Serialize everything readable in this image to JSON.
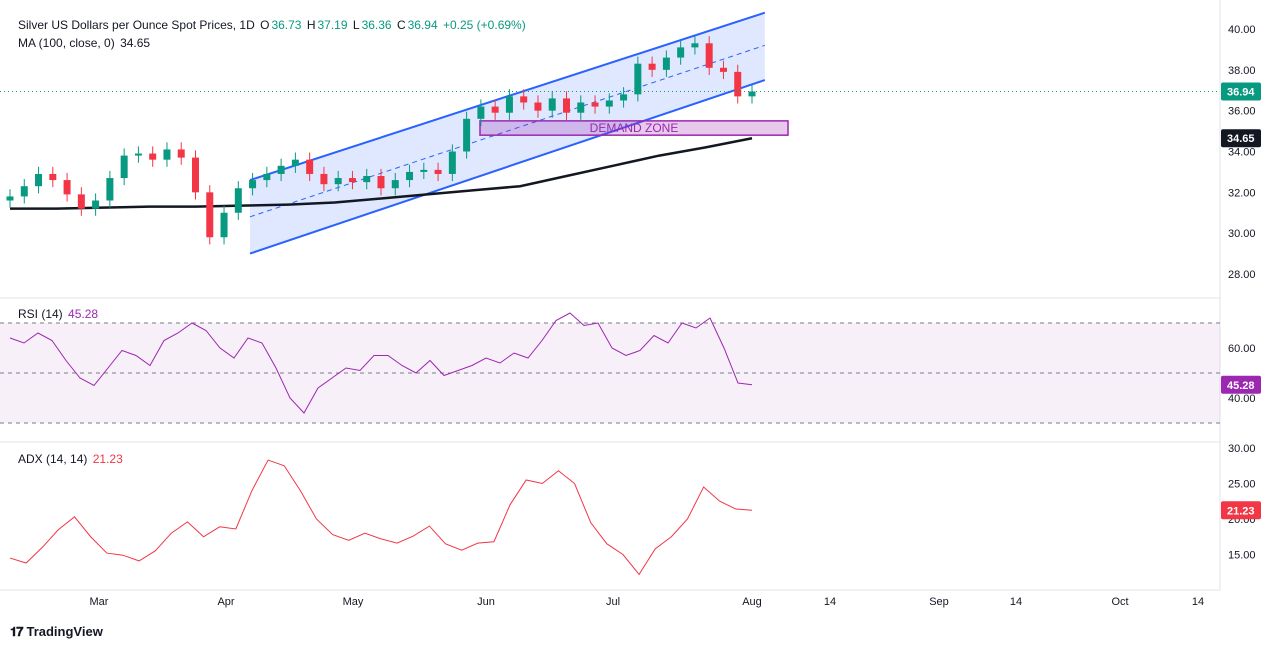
{
  "header": {
    "symbol": "Silver US Dollars per Ounce Spot Prices, 1D",
    "o_label": "O",
    "o": "36.73",
    "h_label": "H",
    "h": "37.19",
    "l_label": "L",
    "l": "36.36",
    "c_label": "C",
    "c": "36.94",
    "change": "+0.25 (+0.69%)"
  },
  "ma_legend": {
    "label": "MA (100, close, 0)",
    "value": "34.65"
  },
  "rsi_legend": {
    "label": "RSI (14)",
    "value": "45.28"
  },
  "adx_legend": {
    "label": "ADX (14, 14)",
    "value": "21.23"
  },
  "branding": {
    "name": "TradingView"
  },
  "colors": {
    "up": "#089981",
    "down": "#f23645",
    "ma": "#131722",
    "channel": "#2962ff",
    "rsi": "#9c27b0",
    "adx": "#f23645",
    "demand": "#9c27b0"
  },
  "chart_data": [
    {
      "type": "candlestick",
      "title": "Silver US Dollars per Ounce Spot Prices, 1D",
      "ylim": [
        27,
        41
      ],
      "y_ticks": [
        "40.00",
        "38.00",
        "36.00",
        "34.00",
        "32.00",
        "30.00",
        "28.00"
      ],
      "x_ticks": [
        "Mar",
        "Apr",
        "May",
        "Jun",
        "Jul",
        "Aug",
        "14",
        "Sep",
        "14",
        "Oct",
        "14"
      ],
      "last_price_label": "36.94",
      "ma_price_label": "34.65",
      "annotations": [
        "DEMAND ZONE"
      ],
      "demand_zone": {
        "low": 34.8,
        "high": 35.5,
        "label": "DEMAND ZONE"
      },
      "channel": {
        "upper": [
          [
            "2025-04-07",
            32.6
          ],
          [
            "2025-08-07",
            40.8
          ]
        ],
        "mid": [
          [
            "2025-04-07",
            30.8
          ],
          [
            "2025-08-07",
            39.2
          ]
        ],
        "lower": [
          [
            "2025-04-07",
            29.0
          ],
          [
            "2025-08-07",
            37.5
          ]
        ]
      },
      "ma100": [
        31.2,
        31.2,
        31.25,
        31.3,
        31.3,
        31.35,
        31.4,
        31.5,
        31.7,
        31.9,
        32.1,
        32.3,
        32.8,
        33.3,
        33.8,
        34.2,
        34.65
      ],
      "candles_close": [
        31.8,
        32.3,
        32.9,
        32.6,
        31.9,
        31.2,
        31.6,
        32.7,
        33.8,
        33.9,
        33.6,
        34.1,
        33.7,
        32.0,
        29.8,
        31.0,
        32.2,
        32.6,
        32.9,
        33.3,
        33.6,
        32.9,
        32.4,
        32.7,
        32.5,
        32.8,
        32.2,
        32.6,
        33.0,
        33.1,
        32.9,
        34.0,
        35.6,
        36.2,
        35.9,
        36.7,
        36.4,
        36.0,
        36.6,
        35.9,
        36.4,
        36.2,
        36.5,
        36.8,
        38.3,
        38.0,
        38.6,
        39.1,
        39.3,
        38.1,
        37.9,
        36.7,
        36.94
      ],
      "last": 36.94
    },
    {
      "type": "line",
      "title": "RSI (14)",
      "ylim": [
        30,
        75
      ],
      "y_ticks": [
        "60.00",
        "40.00"
      ],
      "levels": [
        70,
        50,
        30
      ],
      "last_label": "45.28",
      "values": [
        64,
        62,
        66,
        63,
        55,
        48,
        45,
        52,
        59,
        57,
        53,
        63,
        66,
        70,
        67,
        60,
        56,
        64,
        62,
        52,
        40,
        34,
        44,
        48,
        52,
        51,
        57,
        57,
        53,
        50,
        55,
        49,
        51,
        53,
        56,
        54,
        58,
        56,
        63,
        71,
        74,
        69,
        70,
        60,
        57,
        59,
        65,
        62,
        70,
        68,
        72,
        60,
        46,
        45.28
      ]
    },
    {
      "type": "line",
      "title": "ADX (14, 14)",
      "ylim": [
        10,
        30
      ],
      "y_ticks": [
        "30.00",
        "25.00",
        "20.00",
        "15.00"
      ],
      "last_label": "21.23",
      "values": [
        14.5,
        13.8,
        16.0,
        18.5,
        20.3,
        17.5,
        15.2,
        14.9,
        14.1,
        15.5,
        18.0,
        19.6,
        17.5,
        18.9,
        18.6,
        24.0,
        28.3,
        27.5,
        24.0,
        20.0,
        17.8,
        17.0,
        18.0,
        17.2,
        16.6,
        17.6,
        19.0,
        16.5,
        15.6,
        16.6,
        16.8,
        22.0,
        25.5,
        25.0,
        26.8,
        25.0,
        19.5,
        16.5,
        15.0,
        12.2,
        15.8,
        17.5,
        20.0,
        24.5,
        22.5,
        21.4,
        21.23
      ]
    }
  ]
}
